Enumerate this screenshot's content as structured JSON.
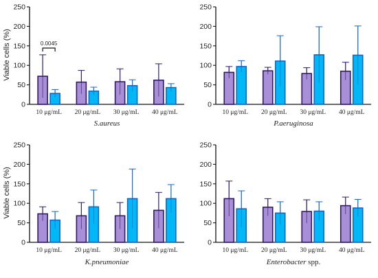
{
  "colors": {
    "series1": "#a98fd8",
    "series1_edge": "#2d1a63",
    "series2": "#00b8f5",
    "series2_edge": "#1565c8",
    "axis": "#111111"
  },
  "chart_data": [
    {
      "type": "bar",
      "xlabel": "S.aureus",
      "xlabel_suffix": "",
      "ylabel": "Viable cells (%)",
      "ylim": [
        0,
        250
      ],
      "yticks": [
        "0",
        "50",
        "100",
        "150",
        "200",
        "250"
      ],
      "categories": [
        "10 μg/mL",
        "20 μg/mL",
        "30 μg/mL",
        "40 μg/mL"
      ],
      "series": [
        {
          "values": [
            72,
            57,
            58,
            62
          ],
          "errors": [
            55,
            30,
            33,
            42
          ]
        },
        {
          "values": [
            28,
            34,
            48,
            43
          ],
          "errors": [
            10,
            10,
            15,
            10
          ]
        }
      ],
      "annotations": [
        {
          "text": "0.0045",
          "category_index": 0
        }
      ]
    },
    {
      "type": "bar",
      "xlabel": "P.aeruginosa",
      "xlabel_suffix": "",
      "ylabel": "",
      "ylim": [
        0,
        250
      ],
      "yticks": [
        "0",
        "50",
        "100",
        "150",
        "200",
        "250"
      ],
      "categories": [
        "10 μg/mL",
        "20 μg/mL",
        "30 μg/mL",
        "40 μg/mL"
      ],
      "series": [
        {
          "values": [
            82,
            86,
            79,
            85
          ],
          "errors": [
            15,
            9,
            15,
            23
          ]
        },
        {
          "values": [
            97,
            111,
            127,
            126
          ],
          "errors": [
            15,
            65,
            72,
            75
          ]
        }
      ],
      "annotations": []
    },
    {
      "type": "bar",
      "xlabel": "K.pneumoniae",
      "xlabel_suffix": "",
      "ylabel": "Viable cells (%)",
      "ylim": [
        0,
        250
      ],
      "yticks": [
        "0",
        "50",
        "100",
        "150",
        "200",
        "250"
      ],
      "categories": [
        "10 μg/mL",
        "20 μg/mL",
        "30 μg/mL",
        "40 μg/mL"
      ],
      "series": [
        {
          "values": [
            73,
            68,
            68,
            82
          ],
          "errors": [
            18,
            34,
            34,
            46
          ]
        },
        {
          "values": [
            57,
            91,
            112,
            112
          ],
          "errors": [
            22,
            43,
            76,
            36
          ]
        }
      ],
      "annotations": []
    },
    {
      "type": "bar",
      "xlabel": "Enterobacter",
      "xlabel_suffix": " spp.",
      "ylabel": "",
      "ylim": [
        0,
        250
      ],
      "yticks": [
        "0",
        "50",
        "100",
        "150",
        "200",
        "250"
      ],
      "categories": [
        "10 μg/mL",
        "20 μg/mL",
        "30 μg/mL",
        "40 μg/mL"
      ],
      "series": [
        {
          "values": [
            112,
            90,
            79,
            94
          ],
          "errors": [
            45,
            22,
            30,
            22
          ]
        },
        {
          "values": [
            86,
            75,
            80,
            88
          ],
          "errors": [
            46,
            29,
            24,
            22
          ]
        }
      ],
      "annotations": []
    }
  ]
}
